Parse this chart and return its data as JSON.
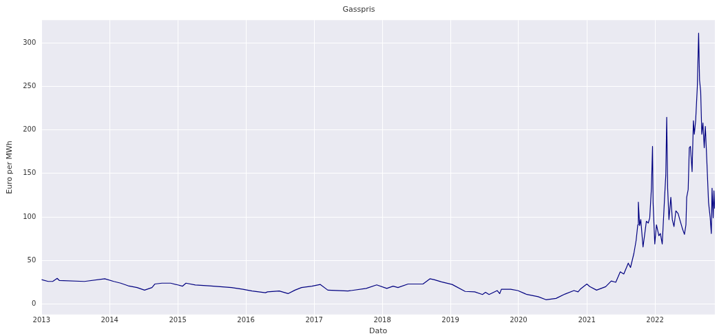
{
  "chart_data": {
    "type": "line",
    "title": "Gasspris",
    "xlabel": "Dato",
    "ylabel": "Euro per MWh",
    "x": [
      "2013-01-01",
      "2013-02-06",
      "2013-03-02",
      "2013-03-26",
      "2013-04-07",
      "2013-08-19",
      "2013-12-06",
      "2014-01-23",
      "2014-03-01",
      "2014-04-10",
      "2014-05-28",
      "2014-07-07",
      "2014-08-16",
      "2014-08-31",
      "2014-10-08",
      "2014-11-24",
      "2015-01-01",
      "2015-01-26",
      "2015-02-14",
      "2015-04-05",
      "2015-06-17",
      "2015-08-17",
      "2015-10-16",
      "2015-12-16",
      "2016-02-03",
      "2016-04-15",
      "2016-04-26",
      "2016-06-28",
      "2016-08-14",
      "2016-09-20",
      "2016-10-25",
      "2016-12-20",
      "2017-02-03",
      "2017-03-15",
      "2017-07-01",
      "2017-10-07",
      "2017-12-02",
      "2018-01-25",
      "2018-02-28",
      "2018-03-26",
      "2018-05-19",
      "2018-08-07",
      "2018-09-13",
      "2018-10-05",
      "2018-11-14",
      "2019-01-10",
      "2019-03-21",
      "2019-05-11",
      "2019-06-22",
      "2019-07-08",
      "2019-07-27",
      "2019-09-09",
      "2019-09-22",
      "2019-10-01",
      "2019-11-20",
      "2019-12-28",
      "2020-02-15",
      "2020-04-15",
      "2020-05-27",
      "2020-07-20",
      "2020-09-06",
      "2020-10-24",
      "2020-11-15",
      "2020-11-29",
      "2021-01-01",
      "2021-01-17",
      "2021-02-22",
      "2021-04-12",
      "2021-05-12",
      "2021-06-05",
      "2021-06-29",
      "2021-07-18",
      "2021-08-11",
      "2021-08-23",
      "2021-09-10",
      "2021-09-22",
      "2021-10-01",
      "2021-10-04",
      "2021-10-11",
      "2021-10-17",
      "2021-10-29",
      "2021-11-06",
      "2021-11-16",
      "2021-11-26",
      "2021-12-04",
      "2021-12-13",
      "2021-12-19",
      "2021-12-22",
      "2021-12-31",
      "2022-01-09",
      "2022-01-22",
      "2022-01-30",
      "2022-02-09",
      "2022-02-21",
      "2022-02-28",
      "2022-03-05",
      "2022-03-10",
      "2022-03-17",
      "2022-03-27",
      "2022-04-04",
      "2022-04-13",
      "2022-04-23",
      "2022-05-05",
      "2022-05-14",
      "2022-05-29",
      "2022-06-08",
      "2022-06-16",
      "2022-06-20",
      "2022-06-28",
      "2022-07-04",
      "2022-07-10",
      "2022-07-19",
      "2022-07-26",
      "2022-07-31",
      "2022-08-07",
      "2022-08-16",
      "2022-08-23",
      "2022-08-28",
      "2022-09-03",
      "2022-09-09",
      "2022-09-15",
      "2022-09-22",
      "2022-09-28",
      "2022-10-07",
      "2022-10-15",
      "2022-10-24",
      "2022-10-30",
      "2022-11-03",
      "2022-11-09",
      "2022-11-13",
      "2022-11-17"
    ],
    "series": [
      {
        "color": "#000080",
        "values": [
          28,
          26,
          26,
          29.5,
          27,
          26,
          29,
          26,
          24,
          21,
          19,
          16,
          19,
          23,
          24,
          24,
          22,
          20.5,
          24,
          22,
          21,
          20,
          19,
          17,
          15,
          13,
          14,
          15,
          12,
          16,
          19,
          20.5,
          22.5,
          16,
          15,
          18,
          22,
          18,
          20.5,
          19,
          23,
          23,
          29,
          28,
          25.5,
          22.5,
          14.5,
          14,
          11,
          13.5,
          11,
          15.5,
          12,
          17,
          17,
          15.5,
          11,
          8.5,
          5,
          6.5,
          11.5,
          15.5,
          14,
          17.5,
          23,
          20,
          16,
          20,
          26.5,
          25,
          37,
          34.5,
          47,
          42,
          58,
          73,
          91,
          117,
          90,
          97,
          65.5,
          78.5,
          95,
          93,
          99,
          133,
          181,
          117,
          69,
          91,
          78.5,
          81,
          69,
          120,
          148,
          214.5,
          133,
          97,
          122.5,
          97,
          89,
          107,
          104,
          97,
          86,
          80,
          91,
          122.5,
          131.5,
          179.5,
          181,
          152,
          210.5,
          195,
          210.5,
          249.5,
          311,
          257,
          244,
          195,
          208,
          179.5,
          204,
          159,
          117,
          99,
          81,
          133,
          99,
          130,
          109.5
        ]
      }
    ],
    "xlim": [
      "2013-01-01",
      "2022-11-18"
    ],
    "xticks": [
      {
        "value": "2013-01-01",
        "label": "2013"
      },
      {
        "value": "2014-01-01",
        "label": "2014"
      },
      {
        "value": "2015-01-01",
        "label": "2015"
      },
      {
        "value": "2016-01-01",
        "label": "2016"
      },
      {
        "value": "2017-01-01",
        "label": "2017"
      },
      {
        "value": "2018-01-01",
        "label": "2018"
      },
      {
        "value": "2019-01-01",
        "label": "2019"
      },
      {
        "value": "2020-01-01",
        "label": "2020"
      },
      {
        "value": "2021-01-01",
        "label": "2021"
      },
      {
        "value": "2022-01-01",
        "label": "2022"
      }
    ],
    "ylim": [
      -12,
      326
    ],
    "yticks": [
      0,
      50,
      100,
      150,
      200,
      250,
      300
    ],
    "grid": true,
    "legend": false,
    "marker": "none",
    "line_style": "solid"
  }
}
